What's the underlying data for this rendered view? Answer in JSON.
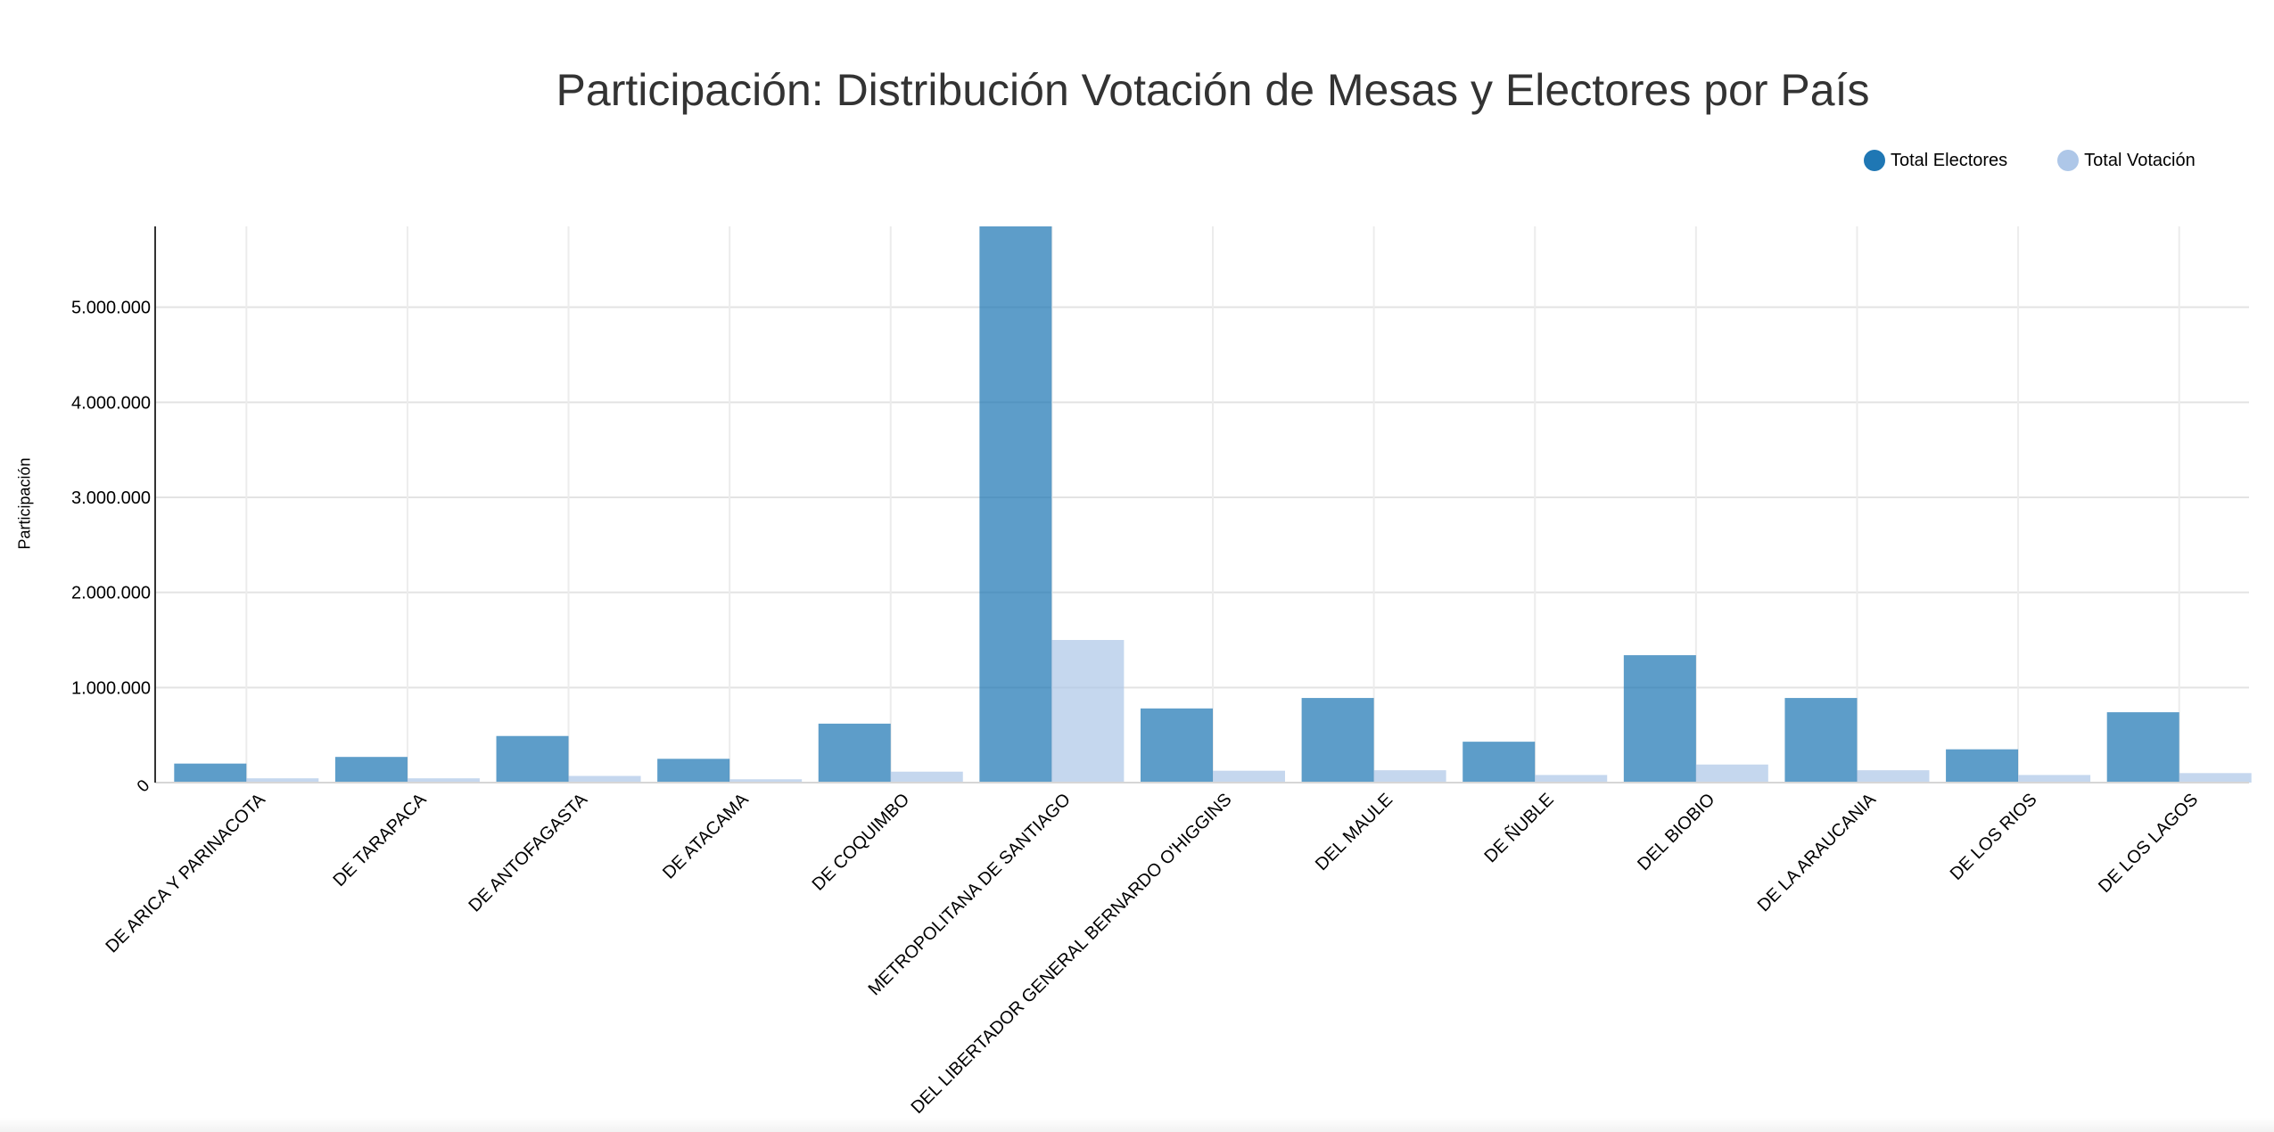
{
  "chart_data": {
    "type": "bar",
    "title": "Participación: Distribución Votación de Mesas y Electores por País",
    "ylabel": "Participación",
    "xlabel": "",
    "ylim": [
      0,
      5850000
    ],
    "yticks": [
      0,
      1000000,
      2000000,
      3000000,
      4000000,
      5000000
    ],
    "ytick_labels": [
      "0",
      "1.000.000",
      "2.000.000",
      "3.000.000",
      "4.000.000",
      "5.000.000"
    ],
    "grid": true,
    "legend_position": "top-right",
    "categories": [
      "DE ARICA Y PARINACOTA",
      "DE TARAPACA",
      "DE ANTOFAGASTA",
      "DE ATACAMA",
      "DE COQUIMBO",
      "METROPOLITANA DE SANTIAGO",
      "DEL LIBERTADOR GENERAL BERNARDO O'HIGGINS",
      "DEL MAULE",
      "DE ÑUBLE",
      "DEL BIOBIO",
      "DE LA ARAUCANIA",
      "DE LOS RIOS",
      "DE LOS LAGOS"
    ],
    "series": [
      {
        "name": "Total Electores",
        "color": "#1f77b4",
        "values": [
          200000,
          270000,
          490000,
          250000,
          620000,
          5850000,
          780000,
          890000,
          430000,
          1340000,
          890000,
          350000,
          740000
        ]
      },
      {
        "name": "Total Votación",
        "color": "#aec7e8",
        "values": [
          45000,
          45000,
          70000,
          35000,
          115000,
          1500000,
          125000,
          130000,
          80000,
          190000,
          130000,
          80000,
          100000
        ]
      }
    ]
  }
}
